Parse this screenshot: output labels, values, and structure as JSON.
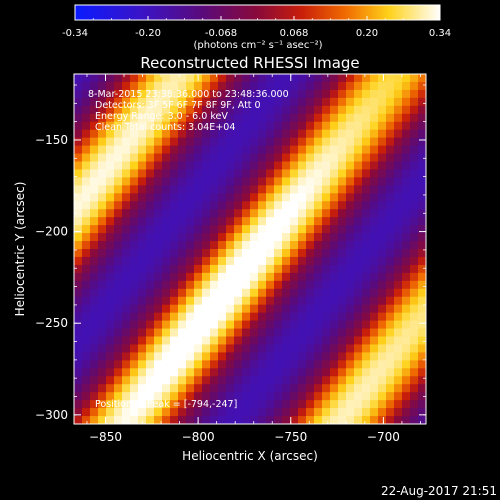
{
  "colorbar": {
    "tick_labels": [
      "-0.34",
      "-0.20",
      "-0.068",
      "0.068",
      "0.20",
      "0.34"
    ],
    "unit_label": "(photons cm⁻² s⁻¹ asec⁻²)",
    "range": [
      -0.34,
      0.34
    ]
  },
  "chart_data": {
    "type": "heatmap",
    "title": "Reconstructed RHESSI Image",
    "xlabel": "Heliocentric X (arcsec)",
    "ylabel": "Heliocentric Y (arcsec)",
    "xlim": [
      -867,
      -677
    ],
    "ylim": [
      -305,
      -114
    ],
    "x_ticks": [
      {
        "value": -850,
        "label": "−850"
      },
      {
        "value": -800,
        "label": "−800"
      },
      {
        "value": -750,
        "label": "−750"
      },
      {
        "value": -700,
        "label": "−700"
      }
    ],
    "y_ticks": [
      {
        "value": -150,
        "label": "−150"
      },
      {
        "value": -200,
        "label": "−200"
      },
      {
        "value": -250,
        "label": "−250"
      },
      {
        "value": -300,
        "label": "−300"
      }
    ],
    "info_lines": [
      "8-Mar-2015 23:38:36.000 to 23:48:36.000",
      "Detectors: 3F 5F 6F 7F 8F 9F, Att 0",
      "Energy Range: 3.0 - 6.0 keV",
      "Clean     Total counts: 3.04E+04"
    ],
    "peak_text": "Position of Peak = [-794,-247]",
    "peak_position": [
      -794,
      -247
    ],
    "colormap": "blue-purple-red-yellow-white",
    "value_range": [
      -0.34,
      0.34
    ],
    "stripes": {
      "count": 3,
      "orientation": "diagonal",
      "description": "alternating bright yellow/white ridges and dark purple troughs running from lower-left to upper-right"
    }
  },
  "footer": {
    "timestamp": "22-Aug-2017 21:51"
  }
}
